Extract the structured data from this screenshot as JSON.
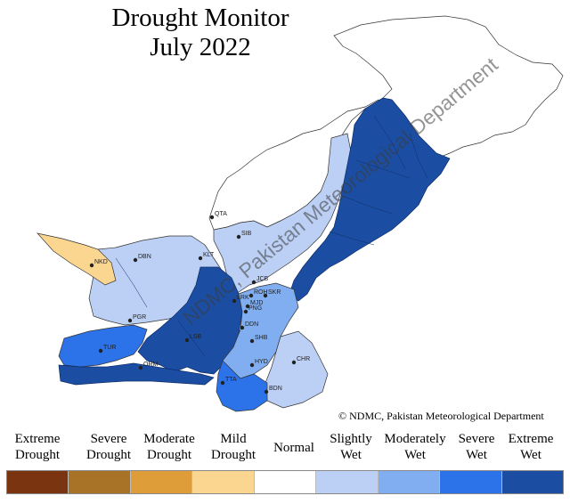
{
  "title": {
    "line1": "Drought Monitor",
    "line2": "July 2022"
  },
  "watermark": "NDMC, Pakistan Meteorological Department",
  "copyright": "© NDMC, Pakistan Meteorological Department",
  "legend": [
    {
      "line1": "Extreme",
      "line2": "Drought",
      "color": "#7a3410"
    },
    {
      "line1": "Severe",
      "line2": "Drought",
      "color": "#a87326"
    },
    {
      "line1": "Moderate",
      "line2": "Drought",
      "color": "#df9d39"
    },
    {
      "line1": "Mild",
      "line2": "Drought",
      "color": "#fbd690"
    },
    {
      "line1": "Normal",
      "line2": "",
      "color": "#ffffff"
    },
    {
      "line1": "Slightly",
      "line2": "Wet",
      "color": "#bcd0f5"
    },
    {
      "line1": "Moderately",
      "line2": "Wet",
      "color": "#80aef0"
    },
    {
      "line1": "Severe",
      "line2": "Wet",
      "color": "#2c72e8"
    },
    {
      "line1": "Extreme",
      "line2": "Wet",
      "color": "#1b4ea3"
    }
  ],
  "cities": [
    {
      "code": "QTA"
    },
    {
      "code": "SIB"
    },
    {
      "code": "NKD"
    },
    {
      "code": "DBN"
    },
    {
      "code": "KLT"
    },
    {
      "code": "JCB"
    },
    {
      "code": "ROH"
    },
    {
      "code": "SKR"
    },
    {
      "code": "LRK"
    },
    {
      "code": "MJD"
    },
    {
      "code": "PNG"
    },
    {
      "code": "DDN"
    },
    {
      "code": "SHB"
    },
    {
      "code": "HYD"
    },
    {
      "code": "CHR"
    },
    {
      "code": "BDN"
    },
    {
      "code": "TTA"
    },
    {
      "code": "TUR"
    },
    {
      "code": "LSB"
    },
    {
      "code": "ORM"
    },
    {
      "code": "PGR"
    }
  ]
}
